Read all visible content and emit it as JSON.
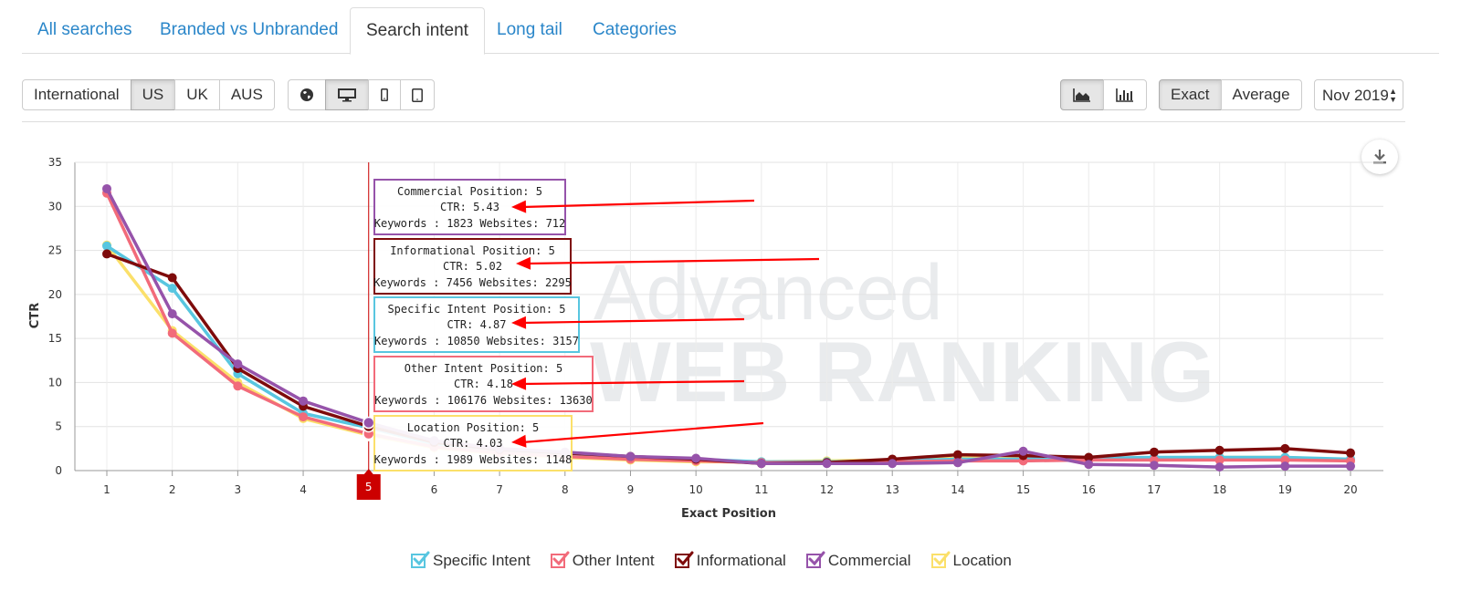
{
  "tabs": [
    {
      "label": "All searches",
      "active": false
    },
    {
      "label": "Branded vs Unbranded",
      "active": false
    },
    {
      "label": "Search intent",
      "active": true
    },
    {
      "label": "Long tail",
      "active": false
    },
    {
      "label": "Categories",
      "active": false
    }
  ],
  "regions": [
    {
      "label": "International",
      "active": false
    },
    {
      "label": "US",
      "active": true
    },
    {
      "label": "UK",
      "active": false
    },
    {
      "label": "AUS",
      "active": false
    }
  ],
  "devices": [
    {
      "icon": "globe-icon",
      "active": false
    },
    {
      "icon": "desktop-icon",
      "active": true
    },
    {
      "icon": "mobile-icon",
      "active": false
    },
    {
      "icon": "tablet-icon",
      "active": false
    }
  ],
  "chart_types": [
    {
      "icon": "area-chart-icon",
      "active": true
    },
    {
      "icon": "bar-chart-icon",
      "active": false
    }
  ],
  "modes": [
    {
      "label": "Exact",
      "active": true
    },
    {
      "label": "Average",
      "active": false
    }
  ],
  "date_select": {
    "value": "Nov 2019"
  },
  "download_icon": "download-icon",
  "watermark": {
    "line1": "Advanced",
    "line2": "WEB RANKING"
  },
  "colors": {
    "specific": "#58c6e0",
    "other": "#f26b7a",
    "informational": "#7e0b0b",
    "commercial": "#9653aa",
    "location": "#fbe06a",
    "crosshair": "#cc0000",
    "arrow": "#ff0000"
  },
  "chart_data": {
    "type": "line",
    "xlabel": "Exact Position",
    "ylabel": "CTR",
    "x": [
      1,
      2,
      3,
      4,
      5,
      6,
      7,
      8,
      9,
      10,
      11,
      12,
      13,
      14,
      15,
      16,
      17,
      18,
      19,
      20
    ],
    "ylim": [
      0,
      35
    ],
    "yticks": [
      0,
      5,
      10,
      15,
      20,
      25,
      30,
      35
    ],
    "grid": true,
    "legend_position": "bottom",
    "highlight_x": 5,
    "series": [
      {
        "name": "Specific Intent",
        "key": "specific",
        "values": [
          25.5,
          20.7,
          11.0,
          6.5,
          4.87,
          3.0,
          2.3,
          1.9,
          1.5,
          1.3,
          1.0,
          1.0,
          1.1,
          1.3,
          1.3,
          1.4,
          1.5,
          1.5,
          1.5,
          1.3
        ]
      },
      {
        "name": "Other Intent",
        "key": "other",
        "values": [
          31.5,
          15.6,
          9.6,
          6.1,
          4.18,
          2.7,
          2.0,
          1.6,
          1.3,
          1.1,
          0.9,
          0.9,
          1.0,
          1.1,
          1.1,
          1.2,
          1.2,
          1.2,
          1.2,
          1.1
        ]
      },
      {
        "name": "Informational",
        "key": "informational",
        "values": [
          24.6,
          21.9,
          11.6,
          7.3,
          5.02,
          3.2,
          2.4,
          2.0,
          1.6,
          1.3,
          0.8,
          0.9,
          1.3,
          1.8,
          1.7,
          1.5,
          2.1,
          2.3,
          2.5,
          2.0
        ]
      },
      {
        "name": "Commercial",
        "key": "commercial",
        "values": [
          32.0,
          17.8,
          12.1,
          7.9,
          5.43,
          3.4,
          2.5,
          2.1,
          1.6,
          1.4,
          0.8,
          0.8,
          0.8,
          0.9,
          2.2,
          0.7,
          0.6,
          0.4,
          0.5,
          0.5
        ]
      },
      {
        "name": "Location",
        "key": "location",
        "values": [
          25.6,
          15.9,
          10.0,
          5.9,
          4.03,
          2.6,
          1.9,
          1.5,
          1.2,
          1.0,
          1.0,
          1.1,
          1.2,
          1.4,
          1.5,
          1.4,
          1.4,
          1.5,
          1.5,
          1.2
        ]
      }
    ],
    "tooltips": [
      {
        "key": "commercial",
        "header": "Commercial Position: 5",
        "ctr": "CTR: 5.43",
        "detail": "Keywords : 1823 Websites: 712"
      },
      {
        "key": "informational",
        "header": "Informational Position: 5",
        "ctr": "CTR: 5.02",
        "detail": "Keywords : 7456 Websites: 2295"
      },
      {
        "key": "specific",
        "header": "Specific Intent Position: 5",
        "ctr": "CTR: 4.87",
        "detail": "Keywords : 10850 Websites: 3157"
      },
      {
        "key": "other",
        "header": "Other Intent Position: 5",
        "ctr": "CTR: 4.18",
        "detail": "Keywords : 106176 Websites: 13630"
      },
      {
        "key": "location",
        "header": "Location Position: 5",
        "ctr": "CTR: 4.03",
        "detail": "Keywords : 1989 Websites: 1148"
      }
    ]
  }
}
